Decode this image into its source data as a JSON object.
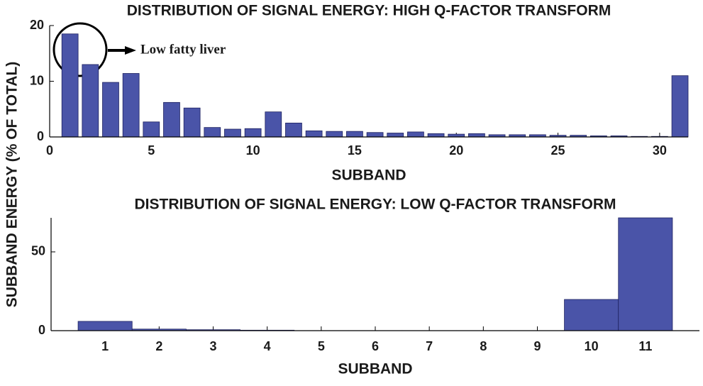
{
  "chart_data": [
    {
      "type": "bar",
      "title": "DISTRIBUTION OF SIGNAL ENERGY: HIGH Q-FACTOR TRANSFORM",
      "xlabel": "SUBBAND",
      "ylabel": "SUBBAND ENERGY (% OF TOTAL)",
      "annotation": "Low fatty liver",
      "x": [
        1,
        2,
        3,
        4,
        5,
        6,
        7,
        8,
        9,
        10,
        11,
        12,
        13,
        14,
        15,
        16,
        17,
        18,
        19,
        20,
        21,
        22,
        23,
        24,
        25,
        26,
        27,
        28,
        29,
        30,
        31
      ],
      "values": [
        18.5,
        13,
        9.8,
        11.4,
        2.7,
        6.2,
        5.2,
        1.7,
        1.4,
        1.5,
        4.5,
        2.5,
        1.1,
        1.0,
        1.0,
        0.8,
        0.7,
        0.9,
        0.6,
        0.5,
        0.6,
        0.4,
        0.4,
        0.4,
        0.3,
        0.3,
        0.2,
        0.2,
        0.1,
        0.1,
        11
      ],
      "color": "#4a54a8",
      "xlim": [
        0,
        31.4
      ],
      "xticks": [
        0,
        5,
        10,
        15,
        20,
        25,
        30
      ],
      "ylim": [
        0,
        20
      ],
      "yticks": [
        0,
        10,
        20
      ]
    },
    {
      "type": "bar",
      "title": "DISTRIBUTION OF SIGNAL ENERGY: LOW Q-FACTOR TRANSFORM",
      "xlabel": "SUBBAND",
      "categories": [
        "1",
        "2",
        "3",
        "4",
        "5",
        "6",
        "7",
        "8",
        "9",
        "10",
        "11"
      ],
      "values": [
        5.9,
        1.0,
        0.6,
        0.3,
        0.05,
        0.05,
        0.05,
        0.05,
        0.05,
        19.8,
        71.6
      ],
      "color": "#4a54a8",
      "ylim": [
        0,
        71.6
      ],
      "yticks": [
        0,
        50
      ]
    }
  ]
}
